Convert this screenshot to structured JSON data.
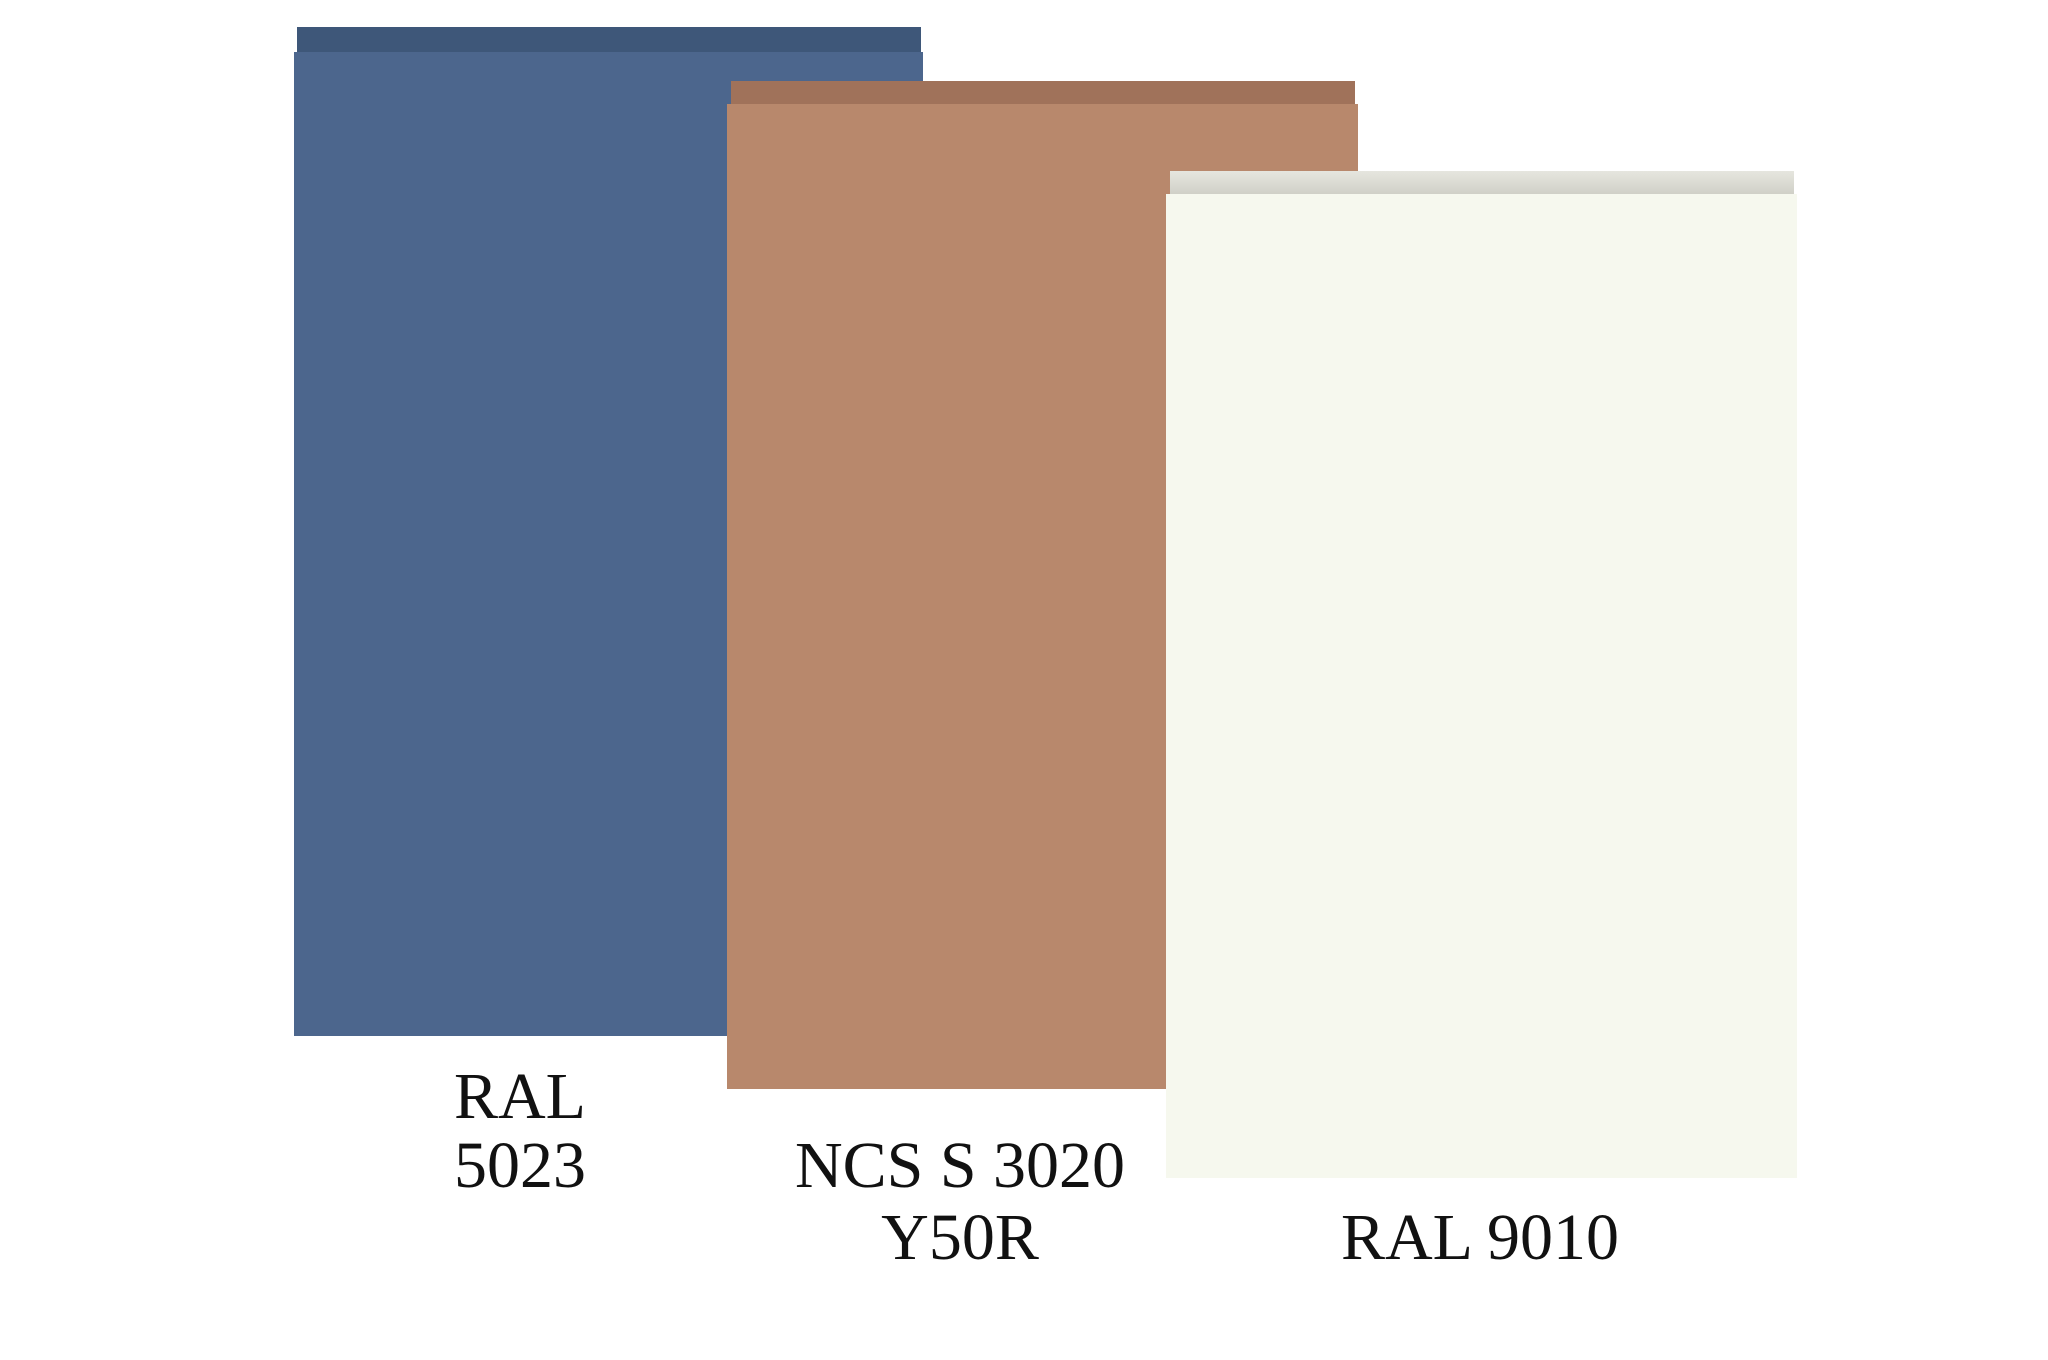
{
  "swatches": [
    {
      "label_lines": [
        "RAL",
        "5023"
      ]
    },
    {
      "label_lines": [
        "NCS S 3020",
        "Y50R"
      ]
    },
    {
      "label_lines": [
        "RAL 9010"
      ]
    }
  ]
}
